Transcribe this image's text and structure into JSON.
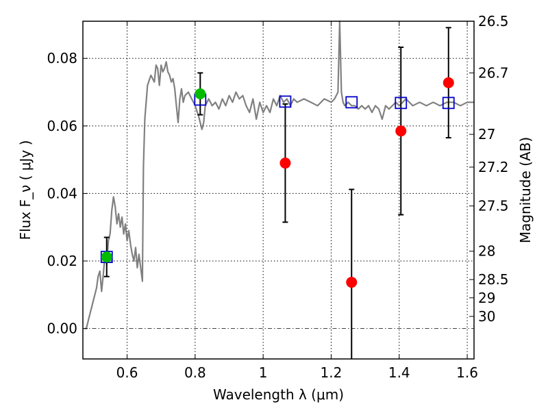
{
  "chart_data": {
    "type": "scatter",
    "xlabel": "Wavelength  λ (μm)",
    "ylabel_left": "Flux  F_ν  ( μJy )",
    "ylabel_right": "Magnitude (AB)",
    "xlim": [
      0.47,
      1.62
    ],
    "ylim": [
      -0.009,
      0.091
    ],
    "x_ticks": [
      0.6,
      0.8,
      1.0,
      1.2,
      1.4,
      1.6
    ],
    "x_tick_labels": [
      "0.6",
      "0.8",
      "1",
      "1.2",
      "1.4",
      "1.6"
    ],
    "y_ticks": [
      0.0,
      0.02,
      0.04,
      0.06,
      0.08
    ],
    "y_tick_labels": [
      "0.00",
      "0.02",
      "0.04",
      "0.06",
      "0.08"
    ],
    "right_ticks": [
      {
        "label": "26.5",
        "flux": 0.091
      },
      {
        "label": "26.7",
        "flux": 0.0757
      },
      {
        "label": "27",
        "flux": 0.0575
      },
      {
        "label": "27.2",
        "flux": 0.0478
      },
      {
        "label": "27.5",
        "flux": 0.0363
      },
      {
        "label": "28",
        "flux": 0.0229
      },
      {
        "label": "28.5",
        "flux": 0.0145
      },
      {
        "label": "29",
        "flux": 0.0091
      },
      {
        "label": "30",
        "flux": 0.0036
      }
    ],
    "grid": true,
    "zero_line": true,
    "series": [
      {
        "kind": "model_spectrum",
        "color": "#808080",
        "x": [
          0.475,
          0.48,
          0.49,
          0.5,
          0.51,
          0.515,
          0.52,
          0.525,
          0.53,
          0.535,
          0.54,
          0.545,
          0.55,
          0.555,
          0.56,
          0.565,
          0.57,
          0.575,
          0.58,
          0.585,
          0.59,
          0.595,
          0.6,
          0.605,
          0.61,
          0.615,
          0.62,
          0.625,
          0.63,
          0.635,
          0.64,
          0.645,
          0.648,
          0.652,
          0.66,
          0.67,
          0.68,
          0.685,
          0.69,
          0.695,
          0.7,
          0.705,
          0.71,
          0.715,
          0.72,
          0.725,
          0.73,
          0.735,
          0.74,
          0.745,
          0.75,
          0.755,
          0.76,
          0.765,
          0.77,
          0.78,
          0.79,
          0.8,
          0.81,
          0.82,
          0.825,
          0.83,
          0.84,
          0.85,
          0.86,
          0.87,
          0.88,
          0.89,
          0.9,
          0.91,
          0.92,
          0.93,
          0.94,
          0.95,
          0.96,
          0.97,
          0.98,
          0.99,
          1.0,
          1.01,
          1.02,
          1.03,
          1.04,
          1.05,
          1.06,
          1.07,
          1.08,
          1.09,
          1.1,
          1.12,
          1.14,
          1.16,
          1.18,
          1.2,
          1.21,
          1.22,
          1.225,
          1.23,
          1.235,
          1.24,
          1.25,
          1.26,
          1.27,
          1.28,
          1.29,
          1.3,
          1.31,
          1.32,
          1.33,
          1.34,
          1.35,
          1.36,
          1.37,
          1.38,
          1.39,
          1.4,
          1.42,
          1.44,
          1.46,
          1.48,
          1.5,
          1.52,
          1.54,
          1.56,
          1.58,
          1.6,
          1.62
        ],
        "y": [
          0.0,
          0.0,
          0.004,
          0.008,
          0.012,
          0.0155,
          0.017,
          0.011,
          0.016,
          0.022,
          0.019,
          0.026,
          0.028,
          0.035,
          0.039,
          0.036,
          0.031,
          0.034,
          0.03,
          0.033,
          0.028,
          0.031,
          0.026,
          0.029,
          0.025,
          0.022,
          0.02,
          0.024,
          0.018,
          0.022,
          0.018,
          0.014,
          0.048,
          0.062,
          0.072,
          0.075,
          0.073,
          0.078,
          0.077,
          0.072,
          0.078,
          0.076,
          0.077,
          0.079,
          0.076,
          0.075,
          0.073,
          0.074,
          0.071,
          0.066,
          0.061,
          0.068,
          0.071,
          0.067,
          0.069,
          0.07,
          0.068,
          0.066,
          0.063,
          0.059,
          0.061,
          0.066,
          0.068,
          0.066,
          0.067,
          0.065,
          0.068,
          0.066,
          0.069,
          0.067,
          0.07,
          0.068,
          0.069,
          0.066,
          0.064,
          0.068,
          0.062,
          0.067,
          0.064,
          0.066,
          0.064,
          0.068,
          0.066,
          0.069,
          0.067,
          0.068,
          0.066,
          0.068,
          0.067,
          0.068,
          0.067,
          0.066,
          0.068,
          0.067,
          0.068,
          0.07,
          0.091,
          0.07,
          0.067,
          0.066,
          0.067,
          0.066,
          0.066,
          0.065,
          0.066,
          0.065,
          0.066,
          0.064,
          0.066,
          0.065,
          0.062,
          0.066,
          0.065,
          0.066,
          0.067,
          0.066,
          0.068,
          0.066,
          0.067,
          0.066,
          0.067,
          0.066,
          0.067,
          0.067,
          0.066,
          0.067,
          0.067
        ]
      },
      {
        "kind": "model_photometry",
        "marker": "open-square",
        "color": "#0000cc",
        "x": [
          0.54,
          0.815,
          1.065,
          1.26,
          1.405,
          1.545
        ],
        "y": [
          0.0212,
          0.0678,
          0.0672,
          0.067,
          0.0668,
          0.0668
        ]
      },
      {
        "kind": "detections",
        "marker": "filled-circle",
        "color": "#00bb00",
        "x": [
          0.54,
          0.815
        ],
        "y": [
          0.0212,
          0.0695
        ],
        "err": [
          0.0058,
          0.0062
        ]
      },
      {
        "kind": "non_detections",
        "marker": "filled-circle",
        "color": "#ff0000",
        "x": [
          1.065,
          1.26,
          1.405,
          1.545
        ],
        "y": [
          0.049,
          0.0137,
          0.0585,
          0.0728
        ],
        "err": [
          0.0175,
          0.0275,
          0.0248,
          0.0163
        ]
      }
    ]
  }
}
